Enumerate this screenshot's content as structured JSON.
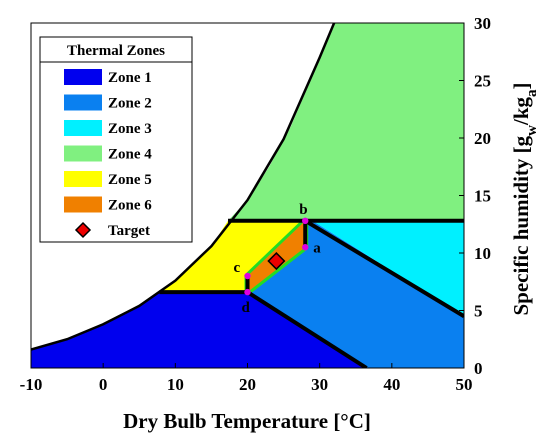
{
  "chart_data": {
    "type": "area",
    "xlabel": "Dry Bulb Temperature [°C]",
    "ylabel_main": "Specific humidity [g",
    "ylabel_sub1": "w",
    "ylabel_mid": "/kg",
    "ylabel_sub2": "a",
    "ylabel_end": "]",
    "xlim": [
      -10,
      50
    ],
    "ylim": [
      0,
      30
    ],
    "xticks": [
      "-10",
      "0",
      "10",
      "20",
      "30",
      "40",
      "50"
    ],
    "yticks": [
      "0",
      "5",
      "10",
      "15",
      "20",
      "25",
      "30"
    ],
    "xtick_values": [
      -10,
      0,
      10,
      20,
      30,
      40,
      50
    ],
    "ytick_values": [
      0,
      5,
      10,
      15,
      20,
      25,
      30
    ],
    "legend_title": "Thermal Zones",
    "legend_position": "top-left",
    "zones": [
      {
        "name": "Zone 1",
        "color": "#0000ee",
        "polygon": [
          [
            -10,
            1.6
          ],
          [
            -5,
            2.5
          ],
          [
            0,
            3.8
          ],
          [
            5,
            5.4
          ],
          [
            7.8,
            6.6
          ],
          [
            20,
            6.6
          ],
          [
            36.5,
            0
          ],
          [
            50,
            0
          ],
          [
            50,
            0
          ],
          [
            -10,
            0
          ]
        ]
      },
      {
        "name": "Zone 2",
        "color": "#0a80f0",
        "polygon": [
          [
            20,
            6.6
          ],
          [
            36.5,
            0
          ],
          [
            50,
            0
          ],
          [
            50,
            4.5
          ],
          [
            29,
            12.8
          ],
          [
            28,
            12.8
          ],
          [
            28,
            10.5
          ]
        ]
      },
      {
        "name": "Zone 3",
        "color": "#00f0ff",
        "polygon": [
          [
            29,
            12.8
          ],
          [
            50,
            12.8
          ],
          [
            50,
            4.5
          ]
        ]
      },
      {
        "name": "Zone 4",
        "color": "#80f080",
        "polygon": [
          [
            17.3,
            12.8
          ],
          [
            20,
            14.6
          ],
          [
            23,
            17.5
          ],
          [
            26,
            21.0
          ],
          [
            29,
            25.4
          ],
          [
            32,
            30
          ],
          [
            50,
            30
          ],
          [
            50,
            12.8
          ]
        ]
      },
      {
        "name": "Zone 5",
        "color": "#ffff00",
        "polygon": [
          [
            7.8,
            6.6
          ],
          [
            10,
            7.6
          ],
          [
            12.5,
            9.0
          ],
          [
            15,
            10.6
          ],
          [
            17.3,
            12.8
          ],
          [
            28,
            12.8
          ],
          [
            20,
            6.6
          ]
        ]
      },
      {
        "name": "Zone 6",
        "color": "#f08000",
        "polygon": [
          [
            20,
            6.6
          ],
          [
            28,
            10.5
          ],
          [
            28,
            12.8
          ],
          [
            20,
            8.0
          ]
        ]
      }
    ],
    "target": {
      "name": "Target",
      "x": 24,
      "y": 9.3,
      "color": "#ee0000"
    },
    "points": [
      {
        "label": "a",
        "x": 28,
        "y": 10.5
      },
      {
        "label": "b",
        "x": 28,
        "y": 12.8
      },
      {
        "label": "c",
        "x": 20,
        "y": 8.0
      },
      {
        "label": "d",
        "x": 20,
        "y": 6.6
      }
    ],
    "saturation_curve": [
      [
        -10,
        1.6
      ],
      [
        -5,
        2.5
      ],
      [
        0,
        3.8
      ],
      [
        5,
        5.4
      ],
      [
        10,
        7.6
      ],
      [
        15,
        10.6
      ],
      [
        20,
        14.6
      ],
      [
        25,
        19.9
      ],
      [
        30,
        27.0
      ],
      [
        32,
        30
      ]
    ],
    "boundary_lines": [
      [
        [
          7.8,
          6.6
        ],
        [
          20,
          6.6
        ]
      ],
      [
        [
          20,
          6.6
        ],
        [
          36.5,
          0
        ]
      ],
      [
        [
          17.3,
          12.8
        ],
        [
          50,
          12.8
        ]
      ],
      [
        [
          28,
          12.8
        ],
        [
          50,
          4.5
        ]
      ],
      [
        [
          28,
          10.5
        ],
        [
          28,
          12.8
        ]
      ],
      [
        [
          20,
          6.6
        ],
        [
          20,
          8.0
        ]
      ]
    ],
    "grid": false
  }
}
